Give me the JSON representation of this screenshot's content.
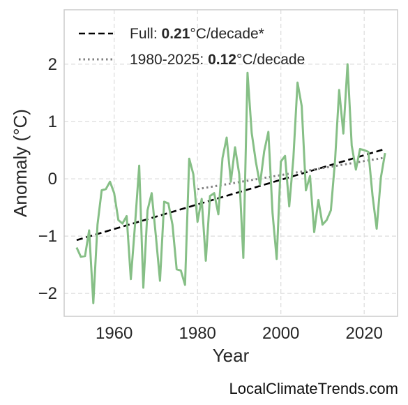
{
  "chart_data": {
    "type": "line",
    "xlabel": "Year",
    "ylabel": "Anomaly (°C)",
    "xlim": [
      1948,
      2028
    ],
    "ylim": [
      -2.4,
      2.95
    ],
    "xticks": [
      1960,
      1980,
      2000,
      2020
    ],
    "yticks": [
      -2,
      -1,
      0,
      1,
      2
    ],
    "ytick_labels": [
      "−2",
      "−1",
      "0",
      "1",
      "2"
    ],
    "grid": true,
    "legend_position": "top-left",
    "series": [
      {
        "color": "#86bf86",
        "x": [
          1951,
          1952,
          1953,
          1954,
          1955,
          1956,
          1957,
          1958,
          1959,
          1960,
          1961,
          1962,
          1963,
          1964,
          1965,
          1966,
          1967,
          1968,
          1969,
          1970,
          1971,
          1972,
          1973,
          1974,
          1975,
          1976,
          1977,
          1978,
          1979,
          1980,
          1981,
          1982,
          1983,
          1984,
          1985,
          1986,
          1987,
          1988,
          1989,
          1990,
          1991,
          1992,
          1993,
          1994,
          1995,
          1996,
          1997,
          1998,
          1999,
          2000,
          2001,
          2002,
          2003,
          2004,
          2005,
          2006,
          2007,
          2008,
          2009,
          2010,
          2011,
          2012,
          2013,
          2014,
          2015,
          2016,
          2017,
          2018,
          2019,
          2020,
          2021,
          2022,
          2023,
          2024,
          2025
        ],
        "y": [
          -1.2,
          -1.36,
          -1.35,
          -0.9,
          -2.17,
          -0.8,
          -0.2,
          -0.18,
          -0.05,
          -0.25,
          -0.72,
          -0.78,
          -0.65,
          -1.75,
          -0.8,
          0.23,
          -1.9,
          -0.55,
          -0.25,
          -1.0,
          -1.78,
          -0.4,
          -0.43,
          -0.8,
          -1.58,
          -1.6,
          -1.85,
          0.35,
          0.08,
          -0.75,
          -0.35,
          -1.43,
          -0.3,
          -0.25,
          -0.62,
          0.36,
          0.72,
          -0.05,
          0.55,
          0.08,
          -1.38,
          1.85,
          0.8,
          0.3,
          -0.1,
          0.48,
          0.82,
          -0.6,
          -1.4,
          0.3,
          0.4,
          -0.48,
          0.35,
          1.68,
          1.27,
          -0.2,
          0.05,
          -0.93,
          -0.37,
          -0.8,
          -0.72,
          -0.55,
          0.32,
          1.55,
          0.79,
          2.0,
          0.58,
          0.16,
          0.52,
          0.5,
          0.47,
          -0.3,
          -0.87,
          0.02,
          0.45
        ]
      }
    ],
    "trends": [
      {
        "label_prefix": "Full: ",
        "label_value": "0.21",
        "label_suffix": "°C/decade*",
        "color": "#000000",
        "dash": "dashed",
        "x": [
          1951,
          2025
        ],
        "y": [
          -1.07,
          0.52
        ]
      },
      {
        "label_prefix": "1980-2025: ",
        "label_value": "0.12",
        "label_suffix": "°C/decade",
        "color": "#808080",
        "dash": "dotted",
        "x": [
          1980,
          2025
        ],
        "y": [
          -0.18,
          0.37
        ]
      }
    ]
  },
  "watermark": "LocalClimateTrends.com"
}
